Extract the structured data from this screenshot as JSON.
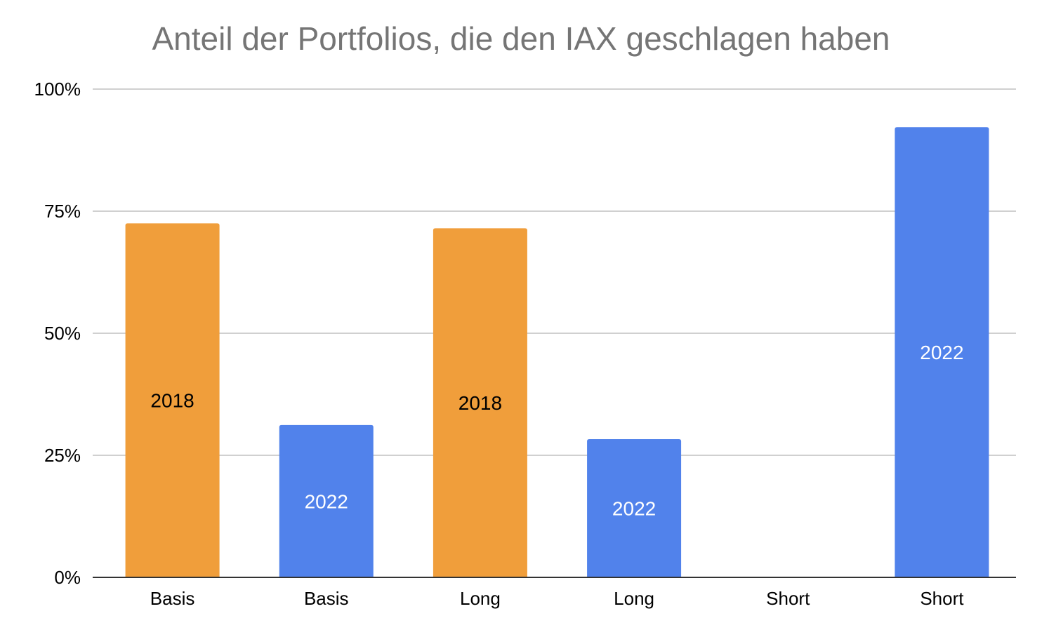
{
  "chart_data": {
    "type": "bar",
    "title": "Anteil der Portfolios, die den IAX geschlagen haben",
    "xlabel": "",
    "ylabel": "",
    "ylim": [
      0,
      1
    ],
    "yticks": [
      {
        "value": 0,
        "label": "0%"
      },
      {
        "value": 0.25,
        "label": "25%"
      },
      {
        "value": 0.5,
        "label": "50%"
      },
      {
        "value": 0.75,
        "label": "75%"
      },
      {
        "value": 1,
        "label": "100%"
      }
    ],
    "grid": true,
    "legend": "none",
    "bars": [
      {
        "category": "Basis",
        "value": 0.725,
        "year": "2018",
        "color": "#f09e3b",
        "label_color": "#000000"
      },
      {
        "category": "Basis",
        "value": 0.312,
        "year": "2022",
        "color": "#5182eb",
        "label_color": "#ffffff"
      },
      {
        "category": "Long",
        "value": 0.715,
        "year": "2018",
        "color": "#f09e3b",
        "label_color": "#000000"
      },
      {
        "category": "Long",
        "value": 0.283,
        "year": "2022",
        "color": "#5182eb",
        "label_color": "#ffffff"
      },
      {
        "category": "Short",
        "value": null,
        "year": "",
        "color": "#f09e3b",
        "label_color": "#000000"
      },
      {
        "category": "Short",
        "value": 0.922,
        "year": "2022",
        "color": "#5182eb",
        "label_color": "#ffffff"
      }
    ],
    "colors": {
      "orange_2018": "#f09e3b",
      "blue_2022": "#5182eb",
      "gridline": "#d0d0d0",
      "axis": "#333333",
      "title": "#757575"
    }
  }
}
